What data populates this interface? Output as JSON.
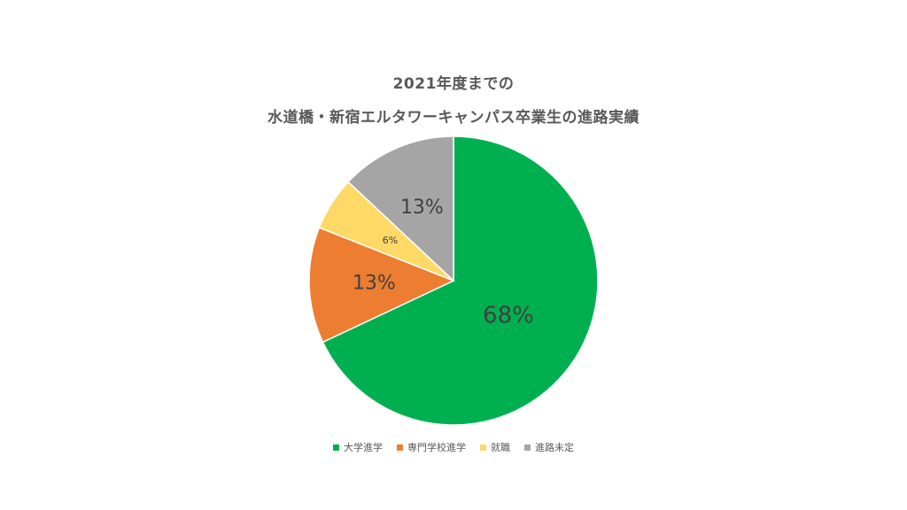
{
  "chart_data": {
    "type": "pie",
    "title_lines": [
      "2021年度までの",
      "水道橋・新宿エルタワーキャンパス卒業生の進路実績"
    ],
    "categories": [
      "大学進学",
      "専門学校進学",
      "就職",
      "進路未定"
    ],
    "values": [
      68,
      13,
      6,
      13
    ],
    "labels": [
      "68%",
      "13%",
      "6%",
      "13%"
    ],
    "colors": [
      "#00B050",
      "#ED7D31",
      "#FFD966",
      "#A5A5A5"
    ],
    "legend_position": "bottom"
  }
}
